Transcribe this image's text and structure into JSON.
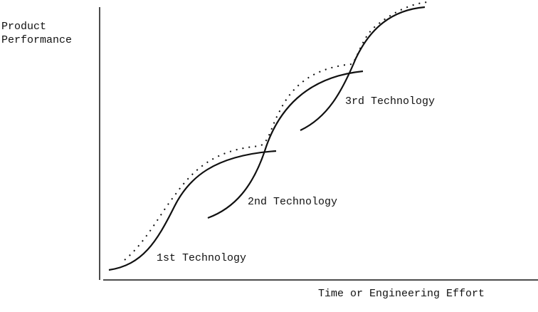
{
  "y_axis": {
    "label_lines": [
      "Product",
      "Performance"
    ]
  },
  "x_axis": {
    "label": "Time or Engineering Effort"
  },
  "curves": [
    {
      "label": "1st Technology"
    },
    {
      "label": "2nd Technology"
    },
    {
      "label": "3rd Technology"
    }
  ]
}
